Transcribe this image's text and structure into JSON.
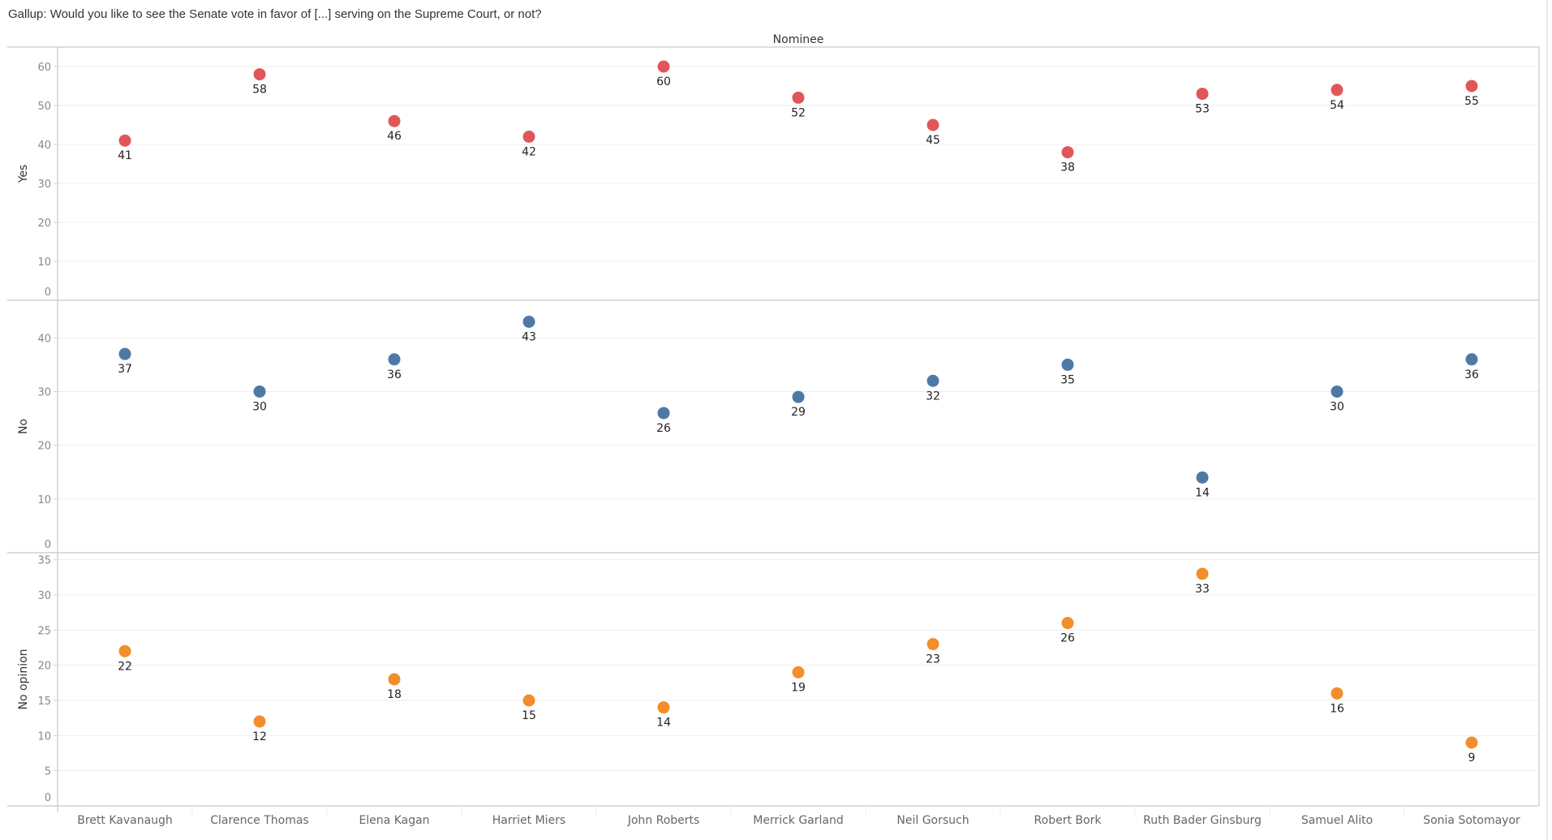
{
  "chart_data": {
    "type": "scatter",
    "title": "Gallup: Would you like to see the Senate vote in favor of [...] serving on the Supreme Court, or not?",
    "column_header": "Nominee",
    "xlabel": "Nominee",
    "categories": [
      "Brett Kavanaugh",
      "Clarence Thomas",
      "Elena Kagan",
      "Harriet Miers",
      "John Roberts",
      "Merrick Garland",
      "Neil Gorsuch",
      "Robert Bork",
      "Ruth Bader Ginsburg",
      "Samuel Alito",
      "Sonia Sotomayor"
    ],
    "grid": true,
    "legend": "none",
    "series": [
      {
        "name": "Yes",
        "color": "#e15759",
        "ylim": [
          0,
          65
        ],
        "ticks": [
          0,
          10,
          20,
          30,
          40,
          50,
          60
        ],
        "values": [
          41,
          58,
          46,
          42,
          60,
          52,
          45,
          38,
          53,
          54,
          55
        ]
      },
      {
        "name": "No",
        "color": "#4e79a7",
        "ylim": [
          0,
          47
        ],
        "ticks": [
          0,
          10,
          20,
          30,
          40
        ],
        "values": [
          37,
          30,
          36,
          43,
          26,
          29,
          32,
          35,
          14,
          30,
          36
        ]
      },
      {
        "name": "No opinion",
        "color": "#f28e2b",
        "ylim": [
          0,
          36
        ],
        "ticks": [
          0,
          5,
          10,
          15,
          20,
          25,
          30,
          35
        ],
        "values": [
          22,
          12,
          18,
          15,
          14,
          19,
          23,
          26,
          33,
          16,
          9
        ]
      }
    ]
  }
}
